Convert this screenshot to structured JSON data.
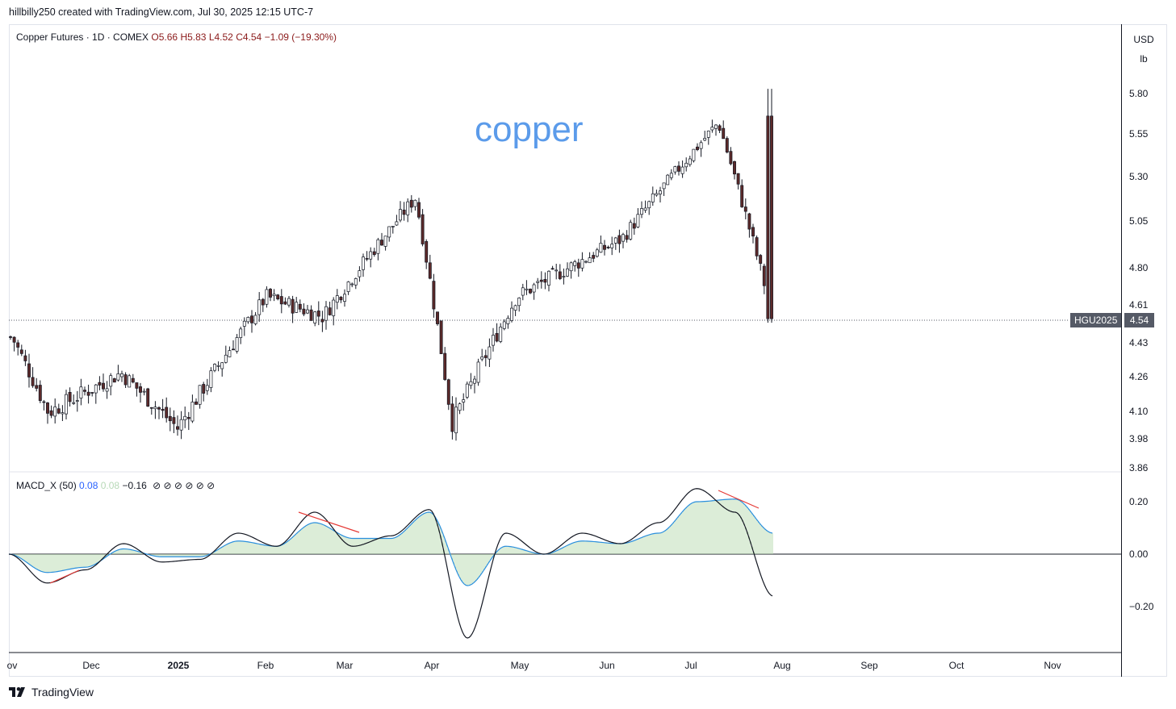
{
  "header": {
    "attribution": "hillbilly250 created with TradingView.com, Jul 30, 2025 12:15 UTC-7"
  },
  "legend": {
    "symbol": "Copper Futures · 1D · COMEX",
    "open": "O5.66",
    "high": "H5.83",
    "low": "L4.52",
    "close": "C4.54",
    "change": "−1.09 (−19.30%)"
  },
  "annotation": "copper",
  "currency": {
    "code": "USD",
    "unit": "lb"
  },
  "price_tag": {
    "symbol": "HGU2025",
    "value": "4.54"
  },
  "macd_legend": {
    "name": "MACD_X (50)",
    "v1": "0.08",
    "v2": "0.08",
    "v3": "−0.16",
    "na": "⊘ ⊘ ⊘ ⊘ ⊘ ⊘"
  },
  "brand": "TradingView",
  "colors": {
    "up": "#ffffff",
    "down": "#5c2a2a",
    "macd": "#131722",
    "signal": "#2a8fdd",
    "hist": "#b9dbb0",
    "divergence": "#e53935"
  },
  "chart_data": [
    {
      "type": "candlestick",
      "title": "Copper Futures · 1D · COMEX",
      "y_ticks": [
        "5.80",
        "5.55",
        "5.30",
        "5.05",
        "4.80",
        "4.61",
        "4.43",
        "4.26",
        "4.10",
        "3.98",
        "3.86"
      ],
      "x_ticks": [
        "ov",
        "Dec",
        "2025",
        "Feb",
        "Mar",
        "Apr",
        "May",
        "Jun",
        "Jul",
        "Aug",
        "Sep",
        "Oct",
        "Nov"
      ],
      "log_scale": true,
      "key_points": [
        {
          "date": "Nov 2024",
          "close": 4.45
        },
        {
          "date": "late Nov 2024",
          "close": 4.1
        },
        {
          "date": "Dec 2024",
          "close": 4.28
        },
        {
          "date": "early Jan 2025",
          "close": 4.03
        },
        {
          "date": "Feb 2025",
          "close": 4.65
        },
        {
          "date": "early Mar 2025",
          "close": 4.55
        },
        {
          "date": "Mar 2025",
          "close": 5.18
        },
        {
          "date": "Apr 2025",
          "close": 4.05
        },
        {
          "date": "May 2025",
          "close": 4.65
        },
        {
          "date": "Jun 2025",
          "close": 4.95
        },
        {
          "date": "Jul 2025",
          "close": 5.62
        },
        {
          "date": "Jul 30 2025",
          "close": 4.54
        }
      ]
    },
    {
      "type": "line",
      "title": "MACD_X (50)",
      "y_ticks": [
        "0.20",
        "0.00",
        "−0.20"
      ],
      "series": [
        {
          "name": "MACD",
          "values": [
            0.0,
            -0.11,
            -0.06,
            0.04,
            -0.03,
            -0.02,
            0.08,
            0.03,
            0.16,
            0.03,
            0.07,
            0.17,
            -0.32,
            0.08,
            0.0,
            0.08,
            0.04,
            0.12,
            0.25,
            0.16,
            -0.16
          ]
        },
        {
          "name": "Signal",
          "values": [
            0.0,
            -0.07,
            -0.05,
            0.02,
            -0.01,
            -0.01,
            0.05,
            0.03,
            0.12,
            0.06,
            0.06,
            0.16,
            -0.12,
            0.03,
            0.0,
            0.05,
            0.04,
            0.08,
            0.2,
            0.21,
            0.08
          ]
        }
      ]
    }
  ]
}
